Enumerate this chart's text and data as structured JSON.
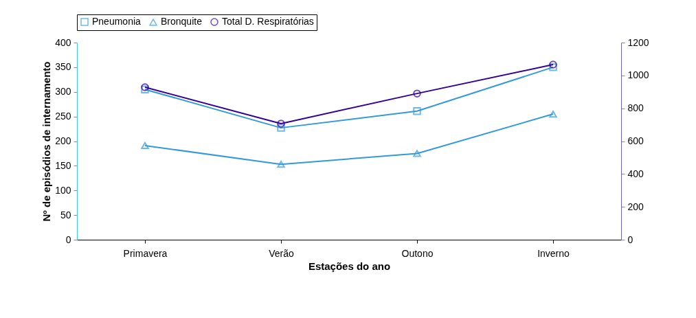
{
  "chart_data": {
    "type": "line",
    "xlabel": "Estações do ano",
    "ylabel": "Nº de episódios de internamento",
    "categories": [
      "Primavera",
      "Verão",
      "Outono",
      "Inverno"
    ],
    "series": [
      {
        "name": "Pneumonia",
        "color": "#3399dd",
        "marker": "square",
        "values": [
          305,
          227,
          261,
          350
        ]
      },
      {
        "name": "Bronquite",
        "color": "#3399dd",
        "marker": "triangle",
        "values": [
          191,
          153,
          175,
          255
        ]
      },
      {
        "name": "Total D. Respiratórias",
        "color": "#330099",
        "marker": "circle",
        "axis": "y2",
        "values": [
          928,
          707,
          890,
          1066
        ]
      }
    ],
    "ylim": [
      0,
      400
    ],
    "yticks": [
      0,
      50,
      100,
      150,
      200,
      250,
      300,
      350,
      400
    ],
    "y2lim": [
      0,
      1200
    ],
    "y2ticks": [
      0,
      200,
      400,
      600,
      800,
      1000,
      1200
    ],
    "legend": "top"
  }
}
